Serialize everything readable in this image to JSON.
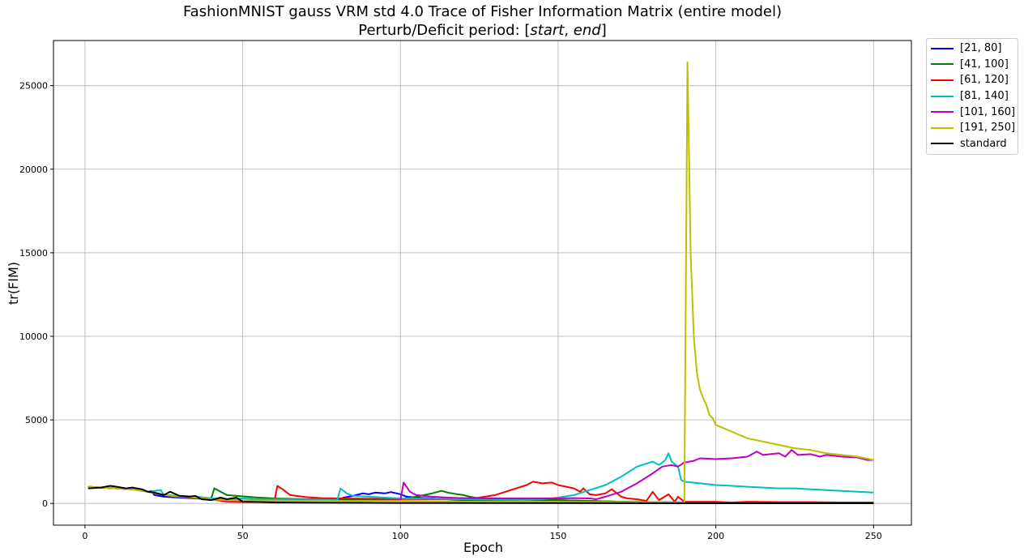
{
  "chart_data": {
    "type": "line",
    "title": "FashionMNIST gauss VRM std 4.0 Trace of Fisher Information Matrix (entire model)",
    "subtitle_prefix": "Perturb/Deficit period: [",
    "subtitle_start": "start",
    "subtitle_sep": ", ",
    "subtitle_end": "end",
    "subtitle_suffix": "]",
    "xlabel": "Epoch",
    "ylabel": "tr(FIM)",
    "xlim": [
      -10,
      262
    ],
    "ylim": [
      -1300,
      27700
    ],
    "xticks": [
      0,
      50,
      100,
      150,
      200,
      250
    ],
    "yticks": [
      0,
      5000,
      10000,
      15000,
      20000,
      25000
    ],
    "grid": true,
    "legend_position": "outside-right",
    "series": [
      {
        "name": "[21, 80]",
        "color": "#0000ff",
        "points": [
          [
            1,
            1000
          ],
          [
            5,
            950
          ],
          [
            10,
            900
          ],
          [
            15,
            850
          ],
          [
            20,
            700
          ],
          [
            21,
            750
          ],
          [
            22,
            500
          ],
          [
            25,
            400
          ],
          [
            30,
            350
          ],
          [
            35,
            300
          ],
          [
            40,
            250
          ],
          [
            45,
            220
          ],
          [
            50,
            180
          ],
          [
            55,
            180
          ],
          [
            60,
            170
          ],
          [
            70,
            160
          ],
          [
            80,
            200
          ],
          [
            82,
            350
          ],
          [
            85,
            450
          ],
          [
            88,
            600
          ],
          [
            90,
            550
          ],
          [
            92,
            650
          ],
          [
            95,
            600
          ],
          [
            97,
            680
          ],
          [
            100,
            550
          ],
          [
            102,
            400
          ],
          [
            105,
            350
          ],
          [
            110,
            300
          ],
          [
            120,
            200
          ],
          [
            130,
            200
          ],
          [
            140,
            200
          ],
          [
            150,
            200
          ],
          [
            160,
            150
          ],
          [
            170,
            100
          ],
          [
            180,
            80
          ],
          [
            190,
            70
          ],
          [
            200,
            60
          ],
          [
            210,
            50
          ],
          [
            220,
            50
          ],
          [
            230,
            40
          ],
          [
            240,
            40
          ],
          [
            250,
            40
          ]
        ]
      },
      {
        "name": "[41, 100]",
        "color": "#008000",
        "points": [
          [
            1,
            1000
          ],
          [
            5,
            950
          ],
          [
            10,
            900
          ],
          [
            15,
            850
          ],
          [
            20,
            700
          ],
          [
            25,
            500
          ],
          [
            30,
            450
          ],
          [
            35,
            400
          ],
          [
            40,
            300
          ],
          [
            41,
            900
          ],
          [
            43,
            700
          ],
          [
            45,
            500
          ],
          [
            50,
            420
          ],
          [
            55,
            350
          ],
          [
            60,
            300
          ],
          [
            70,
            250
          ],
          [
            80,
            230
          ],
          [
            90,
            220
          ],
          [
            100,
            250
          ],
          [
            105,
            400
          ],
          [
            110,
            600
          ],
          [
            113,
            750
          ],
          [
            115,
            650
          ],
          [
            118,
            550
          ],
          [
            120,
            500
          ],
          [
            122,
            400
          ],
          [
            125,
            300
          ],
          [
            130,
            250
          ],
          [
            140,
            230
          ],
          [
            150,
            200
          ],
          [
            160,
            150
          ],
          [
            170,
            100
          ],
          [
            180,
            80
          ],
          [
            190,
            60
          ],
          [
            200,
            50
          ],
          [
            210,
            50
          ],
          [
            220,
            40
          ],
          [
            230,
            40
          ],
          [
            240,
            40
          ],
          [
            250,
            40
          ]
        ]
      },
      {
        "name": "[61, 120]",
        "color": "#ff0000",
        "points": [
          [
            1,
            1000
          ],
          [
            5,
            950
          ],
          [
            10,
            900
          ],
          [
            15,
            850
          ],
          [
            20,
            700
          ],
          [
            25,
            500
          ],
          [
            30,
            400
          ],
          [
            35,
            350
          ],
          [
            40,
            250
          ],
          [
            45,
            100
          ],
          [
            50,
            80
          ],
          [
            55,
            80
          ],
          [
            60,
            90
          ],
          [
            61,
            1050
          ],
          [
            63,
            800
          ],
          [
            65,
            500
          ],
          [
            70,
            380
          ],
          [
            75,
            320
          ],
          [
            80,
            300
          ],
          [
            90,
            280
          ],
          [
            100,
            260
          ],
          [
            110,
            250
          ],
          [
            120,
            250
          ],
          [
            125,
            350
          ],
          [
            130,
            500
          ],
          [
            135,
            800
          ],
          [
            140,
            1100
          ],
          [
            142,
            1300
          ],
          [
            145,
            1200
          ],
          [
            148,
            1250
          ],
          [
            150,
            1100
          ],
          [
            155,
            900
          ],
          [
            157,
            700
          ],
          [
            158,
            900
          ],
          [
            160,
            550
          ],
          [
            162,
            500
          ],
          [
            165,
            600
          ],
          [
            167,
            850
          ],
          [
            170,
            400
          ],
          [
            172,
            300
          ],
          [
            175,
            250
          ],
          [
            178,
            150
          ],
          [
            180,
            700
          ],
          [
            182,
            200
          ],
          [
            185,
            550
          ],
          [
            187,
            100
          ],
          [
            188,
            400
          ],
          [
            190,
            100
          ],
          [
            195,
            100
          ],
          [
            200,
            100
          ],
          [
            205,
            60
          ],
          [
            210,
            100
          ],
          [
            220,
            80
          ],
          [
            230,
            80
          ],
          [
            240,
            60
          ],
          [
            250,
            60
          ]
        ]
      },
      {
        "name": "[81, 140]",
        "color": "#00bfbf",
        "points": [
          [
            1,
            1000
          ],
          [
            5,
            950
          ],
          [
            10,
            900
          ],
          [
            15,
            850
          ],
          [
            20,
            700
          ],
          [
            24,
            800
          ],
          [
            25,
            500
          ],
          [
            30,
            450
          ],
          [
            35,
            400
          ],
          [
            40,
            300
          ],
          [
            45,
            250
          ],
          [
            50,
            300
          ],
          [
            55,
            250
          ],
          [
            60,
            250
          ],
          [
            70,
            230
          ],
          [
            80,
            220
          ],
          [
            81,
            900
          ],
          [
            83,
            600
          ],
          [
            85,
            450
          ],
          [
            90,
            400
          ],
          [
            95,
            350
          ],
          [
            100,
            300
          ],
          [
            110,
            280
          ],
          [
            120,
            250
          ],
          [
            130,
            230
          ],
          [
            140,
            200
          ],
          [
            145,
            250
          ],
          [
            150,
            350
          ],
          [
            155,
            500
          ],
          [
            160,
            800
          ],
          [
            165,
            1100
          ],
          [
            170,
            1600
          ],
          [
            175,
            2200
          ],
          [
            180,
            2500
          ],
          [
            182,
            2300
          ],
          [
            184,
            2600
          ],
          [
            185,
            3000
          ],
          [
            186,
            2500
          ],
          [
            188,
            2200
          ],
          [
            189,
            1400
          ],
          [
            190,
            1300
          ],
          [
            195,
            1200
          ],
          [
            200,
            1100
          ],
          [
            205,
            1050
          ],
          [
            210,
            1000
          ],
          [
            215,
            950
          ],
          [
            220,
            900
          ],
          [
            225,
            900
          ],
          [
            230,
            850
          ],
          [
            235,
            800
          ],
          [
            240,
            750
          ],
          [
            245,
            700
          ],
          [
            250,
            650
          ]
        ]
      },
      {
        "name": "[101, 160]",
        "color": "#bf00bf",
        "points": [
          [
            1,
            1000
          ],
          [
            5,
            950
          ],
          [
            10,
            900
          ],
          [
            15,
            850
          ],
          [
            20,
            700
          ],
          [
            25,
            500
          ],
          [
            30,
            400
          ],
          [
            35,
            350
          ],
          [
            40,
            250
          ],
          [
            45,
            200
          ],
          [
            50,
            180
          ],
          [
            60,
            170
          ],
          [
            70,
            160
          ],
          [
            80,
            150
          ],
          [
            90,
            150
          ],
          [
            100,
            180
          ],
          [
            101,
            1250
          ],
          [
            103,
            700
          ],
          [
            105,
            500
          ],
          [
            110,
            400
          ],
          [
            115,
            350
          ],
          [
            120,
            320
          ],
          [
            130,
            300
          ],
          [
            140,
            300
          ],
          [
            150,
            300
          ],
          [
            155,
            320
          ],
          [
            160,
            300
          ],
          [
            162,
            250
          ],
          [
            165,
            400
          ],
          [
            170,
            700
          ],
          [
            175,
            1200
          ],
          [
            180,
            1800
          ],
          [
            183,
            2200
          ],
          [
            186,
            2300
          ],
          [
            188,
            2200
          ],
          [
            190,
            2450
          ],
          [
            193,
            2550
          ],
          [
            195,
            2700
          ],
          [
            200,
            2650
          ],
          [
            205,
            2700
          ],
          [
            210,
            2800
          ],
          [
            213,
            3100
          ],
          [
            215,
            2900
          ],
          [
            220,
            3000
          ],
          [
            222,
            2800
          ],
          [
            224,
            3200
          ],
          [
            226,
            2900
          ],
          [
            230,
            2950
          ],
          [
            233,
            2800
          ],
          [
            235,
            2900
          ],
          [
            240,
            2800
          ],
          [
            245,
            2750
          ],
          [
            248,
            2600
          ],
          [
            250,
            2600
          ]
        ]
      },
      {
        "name": "[191, 250]",
        "color": "#bfbf00",
        "points": [
          [
            1,
            1000
          ],
          [
            5,
            950
          ],
          [
            10,
            900
          ],
          [
            15,
            850
          ],
          [
            20,
            700
          ],
          [
            25,
            500
          ],
          [
            30,
            400
          ],
          [
            35,
            350
          ],
          [
            40,
            250
          ],
          [
            45,
            200
          ],
          [
            50,
            180
          ],
          [
            60,
            170
          ],
          [
            70,
            160
          ],
          [
            80,
            150
          ],
          [
            100,
            150
          ],
          [
            120,
            120
          ],
          [
            150,
            100
          ],
          [
            170,
            80
          ],
          [
            180,
            70
          ],
          [
            189,
            60
          ],
          [
            190,
            60
          ],
          [
            191,
            26400
          ],
          [
            192,
            15000
          ],
          [
            193,
            10000
          ],
          [
            194,
            7800
          ],
          [
            195,
            6800
          ],
          [
            196,
            6300
          ],
          [
            197,
            5900
          ],
          [
            198,
            5300
          ],
          [
            199,
            5100
          ],
          [
            200,
            4700
          ],
          [
            205,
            4300
          ],
          [
            210,
            3900
          ],
          [
            215,
            3700
          ],
          [
            220,
            3500
          ],
          [
            225,
            3300
          ],
          [
            230,
            3200
          ],
          [
            235,
            3000
          ],
          [
            240,
            2900
          ],
          [
            245,
            2800
          ],
          [
            250,
            2600
          ]
        ]
      },
      {
        "name": "standard",
        "color": "#000000",
        "points": [
          [
            1,
            900
          ],
          [
            5,
            950
          ],
          [
            8,
            1050
          ],
          [
            10,
            1000
          ],
          [
            13,
            900
          ],
          [
            15,
            950
          ],
          [
            18,
            850
          ],
          [
            20,
            700
          ],
          [
            22,
            650
          ],
          [
            25,
            500
          ],
          [
            27,
            700
          ],
          [
            30,
            450
          ],
          [
            33,
            400
          ],
          [
            35,
            450
          ],
          [
            37,
            250
          ],
          [
            40,
            200
          ],
          [
            43,
            350
          ],
          [
            45,
            250
          ],
          [
            48,
            350
          ],
          [
            50,
            100
          ],
          [
            55,
            80
          ],
          [
            60,
            60
          ],
          [
            70,
            50
          ],
          [
            80,
            40
          ],
          [
            100,
            30
          ],
          [
            150,
            20
          ],
          [
            200,
            10
          ],
          [
            250,
            10
          ]
        ]
      }
    ]
  }
}
